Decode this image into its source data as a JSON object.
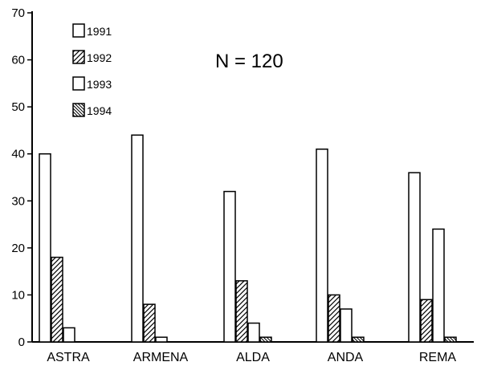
{
  "chart_data": {
    "type": "bar",
    "categories": [
      "ASTRA",
      "ARMENA",
      "ALDA",
      "ANDA",
      "REMA"
    ],
    "series": [
      {
        "name": "1991",
        "values": [
          40,
          44,
          32,
          41,
          36
        ],
        "pattern": "empty"
      },
      {
        "name": "1992",
        "values": [
          18,
          8,
          13,
          10,
          9
        ],
        "pattern": "diag-forward"
      },
      {
        "name": "1993",
        "values": [
          3,
          1,
          4,
          7,
          24
        ],
        "pattern": "empty"
      },
      {
        "name": "1994",
        "values": [
          0,
          0,
          1,
          1,
          1
        ],
        "pattern": "diag-back"
      }
    ],
    "annotation": "N = 120",
    "ylim": [
      0,
      70
    ],
    "yticks": [
      0,
      10,
      20,
      30,
      40,
      50,
      60,
      70
    ],
    "legend_position": "top-left",
    "grid": false,
    "colors": {
      "stroke": "#000000",
      "fill": "#ffffff"
    }
  }
}
